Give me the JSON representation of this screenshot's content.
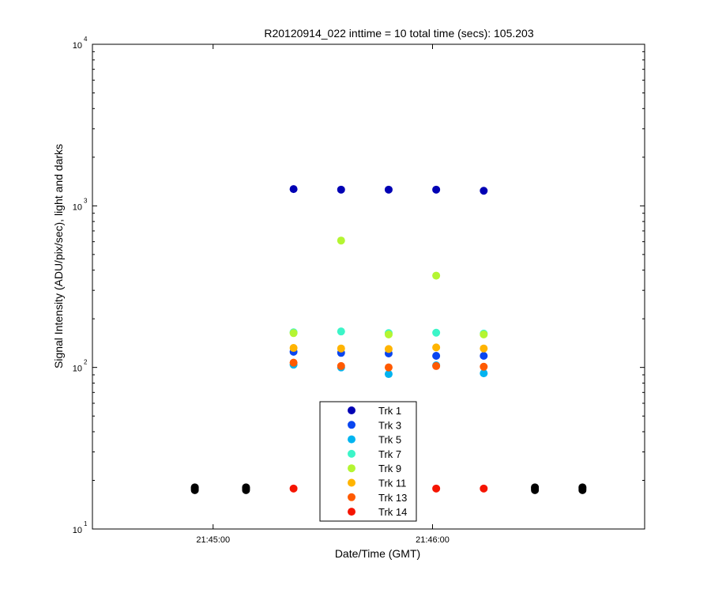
{
  "chart_data": {
    "type": "scatter",
    "title": "R20120914_022 inttime = 10 total time (secs): 105.203",
    "xlabel": "Date/Time (GMT)",
    "ylabel": "Signal Intensity (ADU/pix/sec), light and darks",
    "x_scale": "time",
    "y_scale": "log",
    "xlim": [
      "21:44:27",
      "21:46:58"
    ],
    "ylim": [
      10,
      10000
    ],
    "y_ticks": [
      {
        "value": 10,
        "base": "10",
        "exp": "1"
      },
      {
        "value": 100,
        "base": "10",
        "exp": "2"
      },
      {
        "value": 1000,
        "base": "10",
        "exp": "3"
      },
      {
        "value": 10000,
        "base": "10",
        "exp": "4"
      }
    ],
    "x_ticks": [
      {
        "value": "21:45:00",
        "label": "21:45:00"
      },
      {
        "value": "21:46:00",
        "label": "21:46:00"
      }
    ],
    "grid": false,
    "legend_position": "bottom-center",
    "series": [
      {
        "name": "Trk 1",
        "color": "#0000b4",
        "points": [
          [
            "21:45:22",
            1270
          ],
          [
            "21:45:35",
            1260
          ],
          [
            "21:45:48",
            1260
          ],
          [
            "21:46:01",
            1260
          ],
          [
            "21:46:14",
            1240
          ]
        ]
      },
      {
        "name": "Trk 3",
        "color": "#0a46f0",
        "points": [
          [
            "21:45:22",
            125
          ],
          [
            "21:45:35",
            123
          ],
          [
            "21:45:48",
            122
          ],
          [
            "21:46:01",
            118
          ],
          [
            "21:46:14",
            118
          ]
        ]
      },
      {
        "name": "Trk 5",
        "color": "#00b4f0",
        "points": [
          [
            "21:45:22",
            104
          ],
          [
            "21:45:35",
            100
          ],
          [
            "21:45:48",
            91
          ],
          [
            "21:46:01",
            103
          ],
          [
            "21:46:14",
            92
          ]
        ]
      },
      {
        "name": "Trk 7",
        "color": "#3cf5c8",
        "points": [
          [
            "21:45:22",
            165
          ],
          [
            "21:45:35",
            167
          ],
          [
            "21:45:48",
            163
          ],
          [
            "21:46:01",
            164
          ],
          [
            "21:46:14",
            162
          ]
        ]
      },
      {
        "name": "Trk 9",
        "color": "#b4f532",
        "points": [
          [
            "21:45:22",
            163
          ],
          [
            "21:45:35",
            610
          ],
          [
            "21:45:48",
            160
          ],
          [
            "21:46:01",
            370
          ],
          [
            "21:46:14",
            160
          ]
        ]
      },
      {
        "name": "Trk 11",
        "color": "#ffb400",
        "points": [
          [
            "21:45:22",
            132
          ],
          [
            "21:45:35",
            131
          ],
          [
            "21:45:48",
            130
          ],
          [
            "21:46:01",
            133
          ],
          [
            "21:46:14",
            131
          ]
        ]
      },
      {
        "name": "Trk 13",
        "color": "#ff5a00",
        "points": [
          [
            "21:45:22",
            107
          ],
          [
            "21:45:35",
            102
          ],
          [
            "21:45:48",
            100
          ],
          [
            "21:46:01",
            102
          ],
          [
            "21:46:14",
            101
          ]
        ]
      },
      {
        "name": "Trk 14",
        "color": "#f51400",
        "points": [
          [
            "21:45:22",
            17.8
          ],
          [
            "21:46:01",
            17.8
          ],
          [
            "21:46:14",
            17.8
          ]
        ]
      },
      {
        "color": "#000000",
        "points": [
          [
            "21:44:55",
            17.4
          ],
          [
            "21:44:55",
            17.8
          ],
          [
            "21:44:55",
            18.1
          ],
          [
            "21:45:09",
            17.4
          ],
          [
            "21:45:09",
            17.8
          ],
          [
            "21:45:09",
            18.1
          ],
          [
            "21:46:28",
            17.4
          ],
          [
            "21:46:28",
            17.8
          ],
          [
            "21:46:28",
            18.1
          ],
          [
            "21:46:41",
            17.4
          ],
          [
            "21:46:41",
            17.8
          ],
          [
            "21:46:41",
            18.1
          ]
        ]
      }
    ]
  }
}
